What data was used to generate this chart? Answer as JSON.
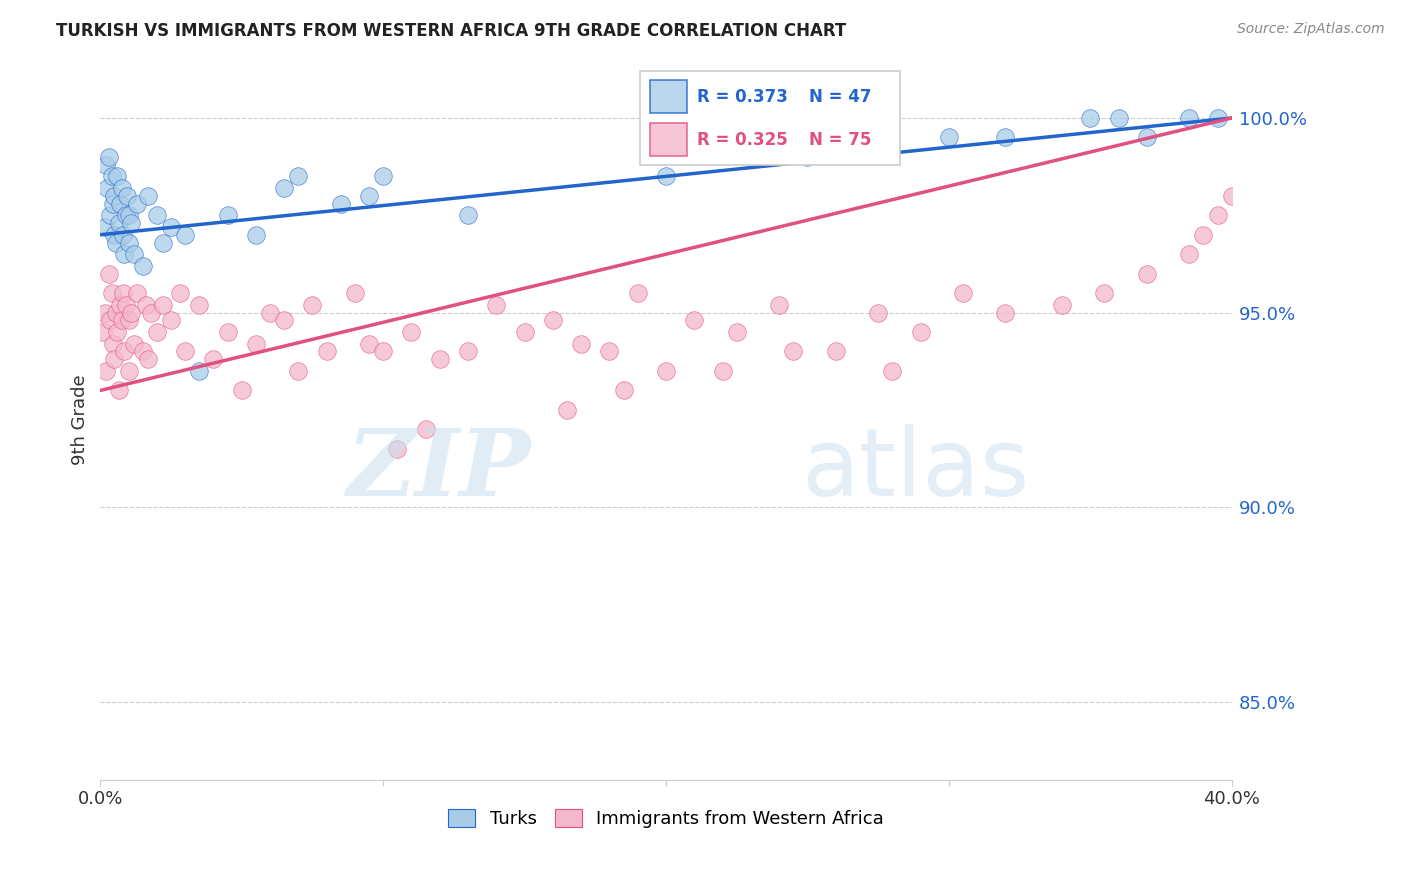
{
  "title": "TURKISH VS IMMIGRANTS FROM WESTERN AFRICA 9TH GRADE CORRELATION CHART",
  "source": "Source: ZipAtlas.com",
  "ylabel": "9th Grade",
  "y_ticks": [
    85.0,
    90.0,
    95.0,
    100.0
  ],
  "y_tick_labels": [
    "85.0%",
    "90.0%",
    "95.0%",
    "100.0%"
  ],
  "x_range": [
    0.0,
    40.0
  ],
  "y_range": [
    83.0,
    101.5
  ],
  "turks_R": 0.373,
  "turks_N": 47,
  "immigrants_R": 0.325,
  "immigrants_N": 75,
  "turks_color": "#a8cce8",
  "immigrants_color": "#f4b8cc",
  "turks_line_color": "#2266cc",
  "immigrants_line_color": "#e05080",
  "turks_x": [
    0.15,
    0.2,
    0.25,
    0.3,
    0.35,
    0.4,
    0.45,
    0.5,
    0.5,
    0.55,
    0.6,
    0.65,
    0.7,
    0.75,
    0.8,
    0.85,
    0.9,
    0.95,
    1.0,
    1.0,
    1.1,
    1.2,
    1.3,
    1.5,
    1.7,
    2.0,
    2.2,
    2.5,
    3.0,
    3.5,
    4.5,
    5.5,
    6.5,
    7.0,
    8.5,
    9.5,
    10.0,
    13.0,
    20.0,
    25.0,
    30.0,
    32.0,
    35.0,
    36.0,
    37.0,
    38.5,
    39.5
  ],
  "turks_y": [
    97.2,
    98.8,
    98.2,
    99.0,
    97.5,
    98.5,
    97.8,
    97.0,
    98.0,
    96.8,
    98.5,
    97.3,
    97.8,
    98.2,
    97.0,
    96.5,
    97.5,
    98.0,
    96.8,
    97.5,
    97.3,
    96.5,
    97.8,
    96.2,
    98.0,
    97.5,
    96.8,
    97.2,
    97.0,
    93.5,
    97.5,
    97.0,
    98.2,
    98.5,
    97.8,
    98.0,
    98.5,
    97.5,
    98.5,
    99.0,
    99.5,
    99.5,
    100.0,
    100.0,
    99.5,
    100.0,
    100.0
  ],
  "immigrants_x": [
    0.1,
    0.15,
    0.2,
    0.3,
    0.35,
    0.4,
    0.45,
    0.5,
    0.55,
    0.6,
    0.65,
    0.7,
    0.75,
    0.8,
    0.85,
    0.9,
    1.0,
    1.0,
    1.1,
    1.2,
    1.3,
    1.5,
    1.6,
    1.7,
    1.8,
    2.0,
    2.2,
    2.5,
    2.8,
    3.0,
    3.5,
    4.0,
    4.5,
    5.0,
    5.5,
    6.0,
    6.5,
    7.0,
    7.5,
    8.0,
    9.0,
    9.5,
    10.0,
    11.0,
    12.0,
    13.0,
    14.0,
    15.0,
    16.0,
    17.0,
    18.0,
    19.0,
    20.0,
    21.0,
    22.5,
    24.0,
    26.0,
    27.5,
    29.0,
    30.5,
    32.0,
    34.0,
    35.5,
    37.0,
    38.5,
    39.0,
    39.5,
    40.0,
    10.5,
    11.5,
    16.5,
    18.5,
    22.0,
    24.5,
    28.0
  ],
  "immigrants_y": [
    94.5,
    95.0,
    93.5,
    96.0,
    94.8,
    95.5,
    94.2,
    93.8,
    95.0,
    94.5,
    93.0,
    95.2,
    94.8,
    95.5,
    94.0,
    95.2,
    94.8,
    93.5,
    95.0,
    94.2,
    95.5,
    94.0,
    95.2,
    93.8,
    95.0,
    94.5,
    95.2,
    94.8,
    95.5,
    94.0,
    95.2,
    93.8,
    94.5,
    93.0,
    94.2,
    95.0,
    94.8,
    93.5,
    95.2,
    94.0,
    95.5,
    94.2,
    94.0,
    94.5,
    93.8,
    94.0,
    95.2,
    94.5,
    94.8,
    94.2,
    94.0,
    95.5,
    93.5,
    94.8,
    94.5,
    95.2,
    94.0,
    95.0,
    94.5,
    95.5,
    95.0,
    95.2,
    95.5,
    96.0,
    96.5,
    97.0,
    97.5,
    98.0,
    91.5,
    92.0,
    92.5,
    93.0,
    93.5,
    94.0,
    93.5
  ]
}
